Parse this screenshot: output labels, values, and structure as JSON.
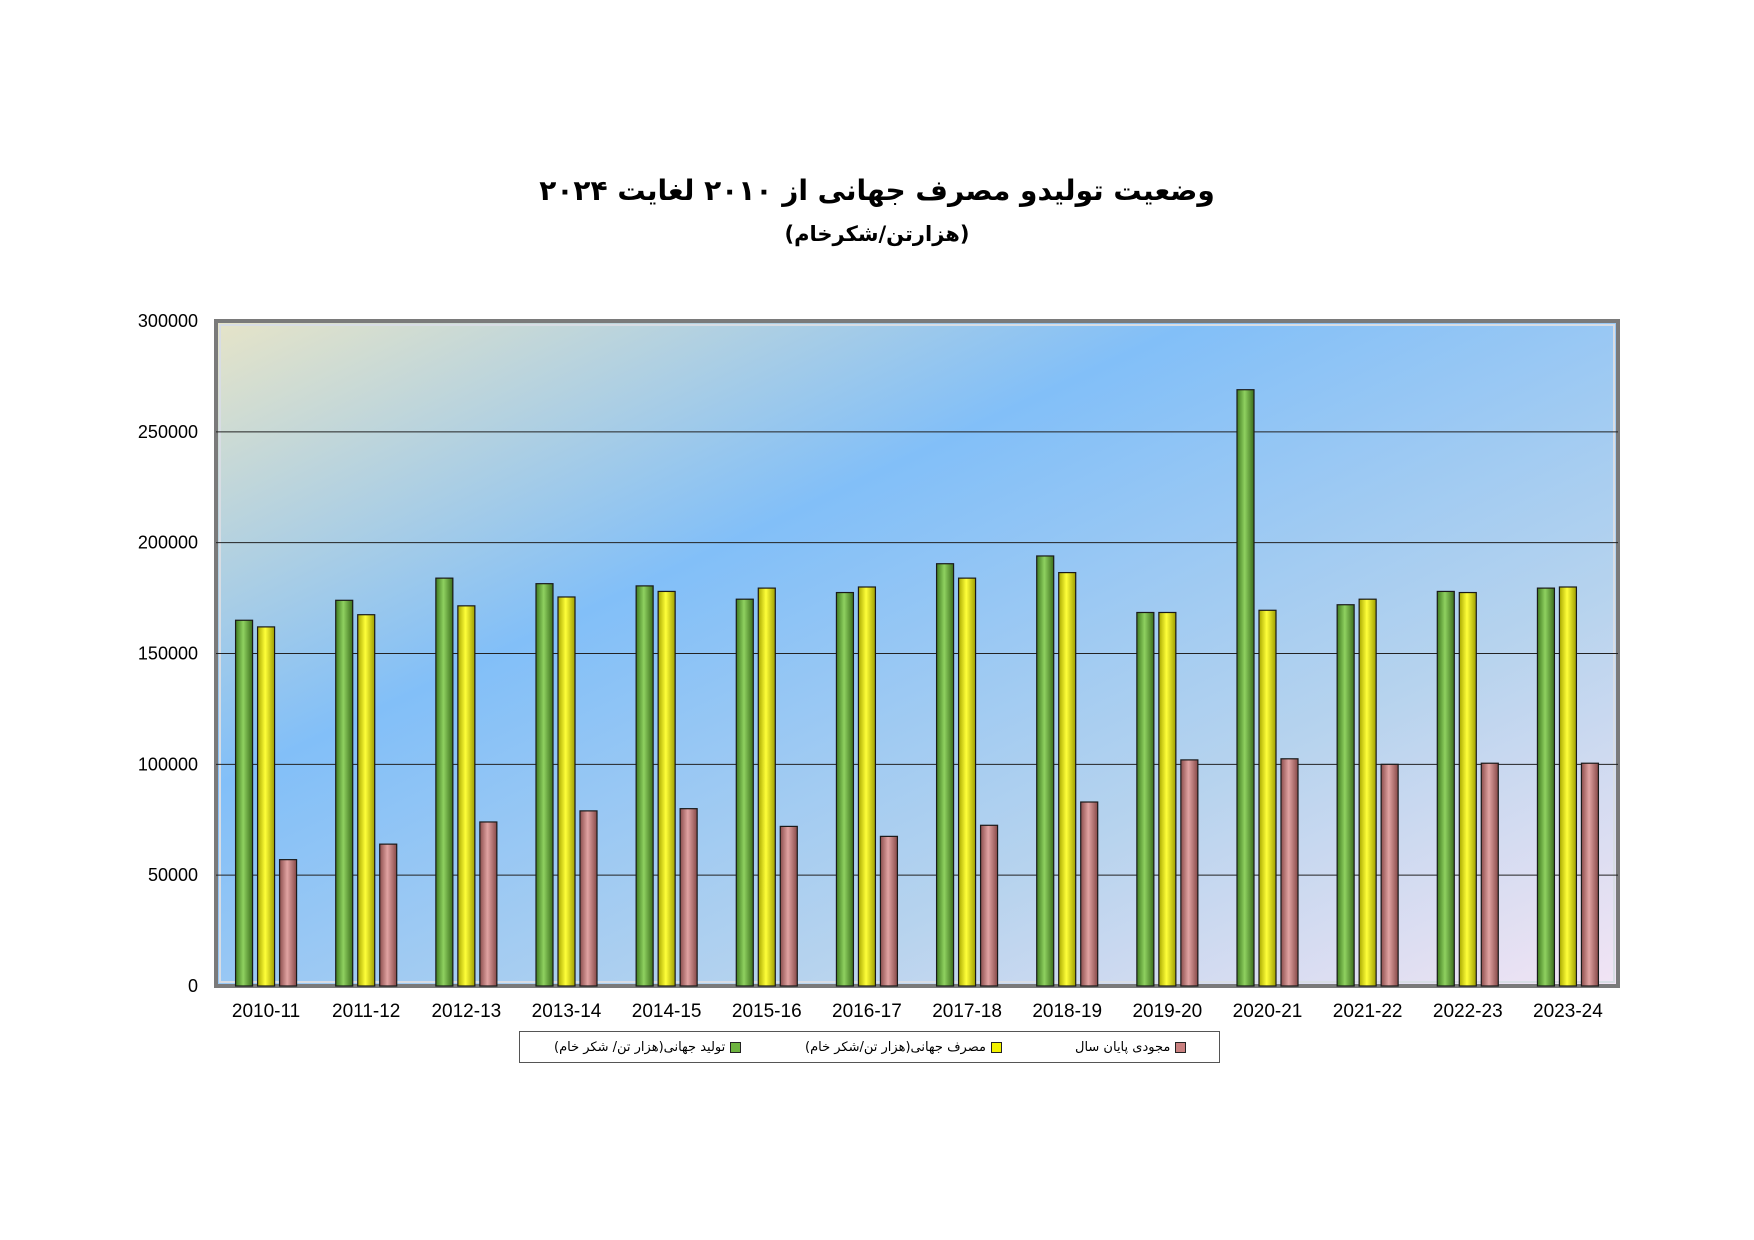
{
  "title": "وضعیت تولیدو مصرف جهانی از ۲۰۱۰ لغایت ۲۰۲۴",
  "subtitle": "(هزارتن/شکرخام)",
  "colors": {
    "production": "#6db33f",
    "consumption": "#f2f200",
    "stock": "#c9807f"
  },
  "chart_data": {
    "type": "bar",
    "categories": [
      "2010-11",
      "2011-12",
      "2012-13",
      "2013-14",
      "2014-15",
      "2015-16",
      "2016-17",
      "2017-18",
      "2018-19",
      "2019-20",
      "2020-21",
      "2021-22",
      "2022-23",
      "2023-24"
    ],
    "series": [
      {
        "name": "تولید جهانی(هزار تن/ شکر خام)",
        "values": [
          165000,
          174000,
          184000,
          181500,
          180500,
          174500,
          177500,
          190500,
          194000,
          168500,
          269000,
          172000,
          178000,
          179500
        ]
      },
      {
        "name": "مصرف جهانی(هزار تن/شکر خام)",
        "values": [
          162000,
          167500,
          171500,
          175500,
          178000,
          179500,
          180000,
          184000,
          186500,
          168500,
          169500,
          174500,
          177500,
          180000
        ]
      },
      {
        "name": "مجودی پایان سال",
        "values": [
          57000,
          64000,
          74000,
          79000,
          80000,
          72000,
          67500,
          72500,
          83000,
          102000,
          102500,
          100000,
          100500,
          100500
        ]
      }
    ],
    "ylim": [
      0,
      300000
    ],
    "yticks": [
      "0",
      "50000",
      "100000",
      "150000",
      "200000",
      "250000",
      "300000"
    ],
    "grid": true,
    "legend": "bottom"
  }
}
